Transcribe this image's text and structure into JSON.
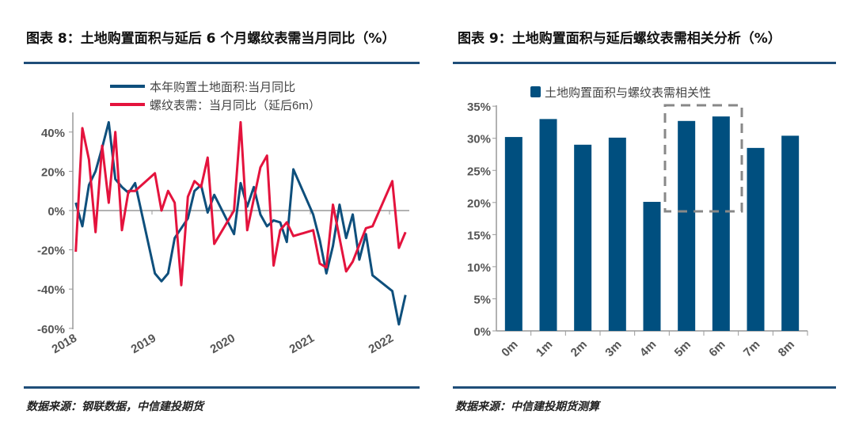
{
  "left": {
    "title": "图表 8：土地购置面积与延后 6 个月螺纹表需当月同比（%）",
    "source": "数据来源：钢联数据，中信建投期货",
    "chart_data": {
      "type": "line",
      "ylim": [
        -60,
        50
      ],
      "yticks": [
        40,
        20,
        0,
        -20,
        -40,
        -60
      ],
      "ytick_labels": [
        "40%",
        "20%",
        "0%",
        "-20%",
        "-40%",
        "-60%"
      ],
      "xtick_labels": [
        "2018",
        "2019",
        "2020",
        "2021",
        "2022"
      ],
      "legend_position": "top",
      "series": [
        {
          "name": "本年购置土地面积:当月同比",
          "color": "#0e4f7c",
          "x": [
            "2018-01",
            "2018-02",
            "2018-03",
            "2018-04",
            "2018-05",
            "2018-06",
            "2018-07",
            "2018-08",
            "2018-09",
            "2018-10",
            "2019-01",
            "2019-02",
            "2019-03",
            "2019-04",
            "2019-06",
            "2019-07",
            "2019-08",
            "2019-09",
            "2019-10",
            "2020-01",
            "2020-02",
            "2020-03",
            "2020-04",
            "2020-05",
            "2020-06",
            "2020-07",
            "2020-08",
            "2020-09",
            "2020-10",
            "2021-01",
            "2021-02",
            "2021-03",
            "2021-04",
            "2021-05",
            "2021-06",
            "2021-07",
            "2021-08",
            "2021-09",
            "2021-10",
            "2022-01",
            "2022-02",
            "2022-03"
          ],
          "y": [
            4,
            -8,
            13,
            20,
            32,
            45,
            16,
            12,
            9,
            14,
            -32,
            -36,
            -32,
            -14,
            -4,
            10,
            13,
            -1,
            8,
            -12,
            14,
            2,
            12,
            -2,
            -8,
            -5,
            -6,
            -16,
            21,
            -2,
            -15,
            -32,
            -18,
            3,
            -14,
            -2,
            -25,
            -12,
            -33,
            -41,
            -58,
            -43
          ]
        },
        {
          "name": "螺纹表需：当月同比（延后6m）",
          "color": "#e4133d",
          "x": [
            "2018-01",
            "2018-02",
            "2018-03",
            "2018-04",
            "2018-05",
            "2018-06",
            "2018-07",
            "2018-08",
            "2018-09",
            "2018-10",
            "2019-01",
            "2019-02",
            "2019-03",
            "2019-04",
            "2019-05",
            "2019-06",
            "2019-07",
            "2019-08",
            "2019-09",
            "2019-10",
            "2020-01",
            "2020-02",
            "2020-03",
            "2020-05",
            "2020-06",
            "2020-07",
            "2020-08",
            "2020-09",
            "2020-10",
            "2021-01",
            "2021-02",
            "2021-03",
            "2021-04",
            "2021-06",
            "2021-07",
            "2021-09",
            "2021-10",
            "2022-01",
            "2022-02",
            "2022-03"
          ],
          "y": [
            -21,
            42,
            26,
            -11,
            33,
            4,
            40,
            -10,
            10,
            10,
            19,
            0,
            10,
            4,
            -38,
            7,
            15,
            12,
            27,
            -17,
            0,
            45,
            -10,
            22,
            28,
            -28,
            -10,
            -6,
            -13,
            -10,
            -27,
            -29,
            3,
            -31,
            -26,
            -9,
            -8,
            15,
            -19,
            -11
          ]
        }
      ]
    }
  },
  "right": {
    "title": "图表 9：土地购置面积与延后螺纹表需相关分析（%）",
    "source": "数据来源：中信建投期货测算",
    "chart_data": {
      "type": "bar",
      "categories": [
        "0m",
        "1m",
        "2m",
        "3m",
        "4m",
        "5m",
        "6m",
        "7m",
        "8m"
      ],
      "series": [
        {
          "name": "土地购置面积与螺纹表需相关性",
          "values": [
            30.2,
            33.0,
            29.0,
            30.1,
            20.1,
            32.7,
            33.4,
            28.5,
            30.4
          ]
        }
      ],
      "ylim": [
        0,
        35
      ],
      "yticks": [
        0,
        5,
        10,
        15,
        20,
        25,
        30,
        35
      ],
      "ytick_labels": [
        "0%",
        "5%",
        "10%",
        "15%",
        "20%",
        "25%",
        "30%",
        "35%"
      ],
      "bar_color": "#004f7f",
      "highlight": [
        "5m",
        "6m"
      ],
      "legend_position": "top"
    }
  }
}
